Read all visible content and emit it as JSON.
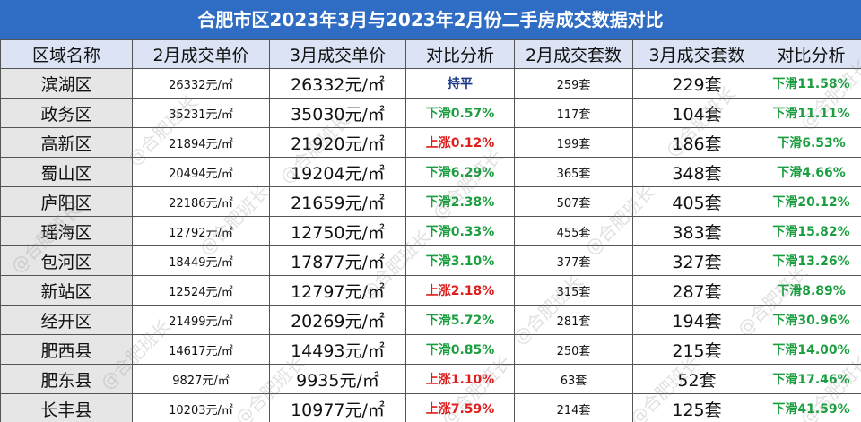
{
  "title": "合肥市区2023年3月与2023年2月份二手房成交数据对比",
  "watermark": "@合肥班长",
  "table": {
    "header": [
      "区域名称",
      "2月成交单价",
      "3月成交单价",
      "对比分析",
      "2月成交套数",
      "3月成交套数",
      "对比分析"
    ],
    "last_column_color": "#1a9e3f",
    "rows": [
      {
        "cells": [
          "滨湖区",
          "26332元/㎡",
          "26332元/㎡",
          "持平",
          "259套",
          "229套",
          "下滑11.58%"
        ],
        "change_color": "#1f3a8a"
      },
      {
        "cells": [
          "政务区",
          "35231元/㎡",
          "35030元/㎡",
          "下滑0.57%",
          "117套",
          "104套",
          "下滑11.11%"
        ],
        "change_color": "#1a9e3f"
      },
      {
        "cells": [
          "高新区",
          "21894元/㎡",
          "21920元/㎡",
          "上涨0.12%",
          "199套",
          "186套",
          "下滑6.53%"
        ],
        "change_color": "#e01b1b"
      },
      {
        "cells": [
          "蜀山区",
          "20494元/㎡",
          "19204元/㎡",
          "下滑6.29%",
          "365套",
          "348套",
          "下滑4.66%"
        ],
        "change_color": "#1a9e3f"
      },
      {
        "cells": [
          "庐阳区",
          "22186元/㎡",
          "21659元/㎡",
          "下滑2.38%",
          "507套",
          "405套",
          "下滑20.12%"
        ],
        "change_color": "#1a9e3f"
      },
      {
        "cells": [
          "瑶海区",
          "12792元/㎡",
          "12750元/㎡",
          "下滑0.33%",
          "455套",
          "383套",
          "下滑15.82%"
        ],
        "change_color": "#1a9e3f"
      },
      {
        "cells": [
          "包河区",
          "18449元/㎡",
          "17877元/㎡",
          "下滑3.10%",
          "377套",
          "327套",
          "下滑13.26%"
        ],
        "change_color": "#1a9e3f"
      },
      {
        "cells": [
          "新站区",
          "12524元/㎡",
          "12797元/㎡",
          "上涨2.18%",
          "315套",
          "287套",
          "下滑8.89%"
        ],
        "change_color": "#e01b1b"
      },
      {
        "cells": [
          "经开区",
          "21499元/㎡",
          "20269元/㎡",
          "下滑5.72%",
          "281套",
          "194套",
          "下滑30.96%"
        ],
        "change_color": "#1a9e3f"
      },
      {
        "cells": [
          "肥西县",
          "14617元/㎡",
          "14493元/㎡",
          "下滑0.85%",
          "250套",
          "215套",
          "下滑14.00%"
        ],
        "change_color": "#1a9e3f"
      },
      {
        "cells": [
          "肥东县",
          "9827元/㎡",
          "9935元/㎡",
          "上涨1.10%",
          "63套",
          "52套",
          "下滑17.46%"
        ],
        "change_color": "#e01b1b"
      },
      {
        "cells": [
          "长丰县",
          "10203元/㎡",
          "10977元/㎡",
          "上涨7.59%",
          "214套",
          "125套",
          "下滑41.59%"
        ],
        "change_color": "#e01b1b"
      }
    ]
  }
}
